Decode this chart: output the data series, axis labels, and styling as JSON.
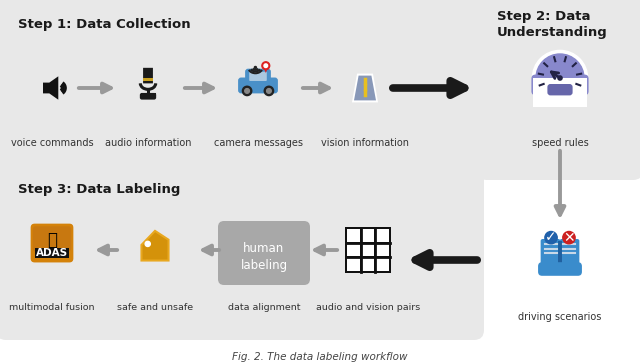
{
  "title": "Fig. 2. The data labeling workflow",
  "step1_title": "Step 1: Data Collection",
  "step2_title": "Step 2: Data\nUnderstanding",
  "step3_title": "Step 3: Data Labeling",
  "step1_labels": [
    "voice commands",
    "audio information",
    "camera messages",
    "vision information"
  ],
  "step2_labels": [
    "speed rules",
    "driving scenarios"
  ],
  "step3_labels": [
    "multimodal fusion",
    "safe and unsafe",
    "data alignment",
    "audio and vision pairs"
  ],
  "box_fill": "#e8e8e8",
  "box_edge": "#cccccc",
  "arrow_gray": "#999999",
  "arrow_black": "#1a1a1a",
  "text_dark": "#1a1a1a",
  "text_label": "#333333",
  "adas_orange": "#d4820a",
  "adas_dark": "#1a1a1a",
  "tag_orange": "#d4920a",
  "hl_gray": "#a8a8a8",
  "gauge_bg": "#9090c8",
  "gauge_dark": "#404080",
  "book_blue": "#3a90cc",
  "check_blue": "#2060aa",
  "cross_red": "#cc2020",
  "road_blue": "#8090aa",
  "road_line": "#e8c020"
}
